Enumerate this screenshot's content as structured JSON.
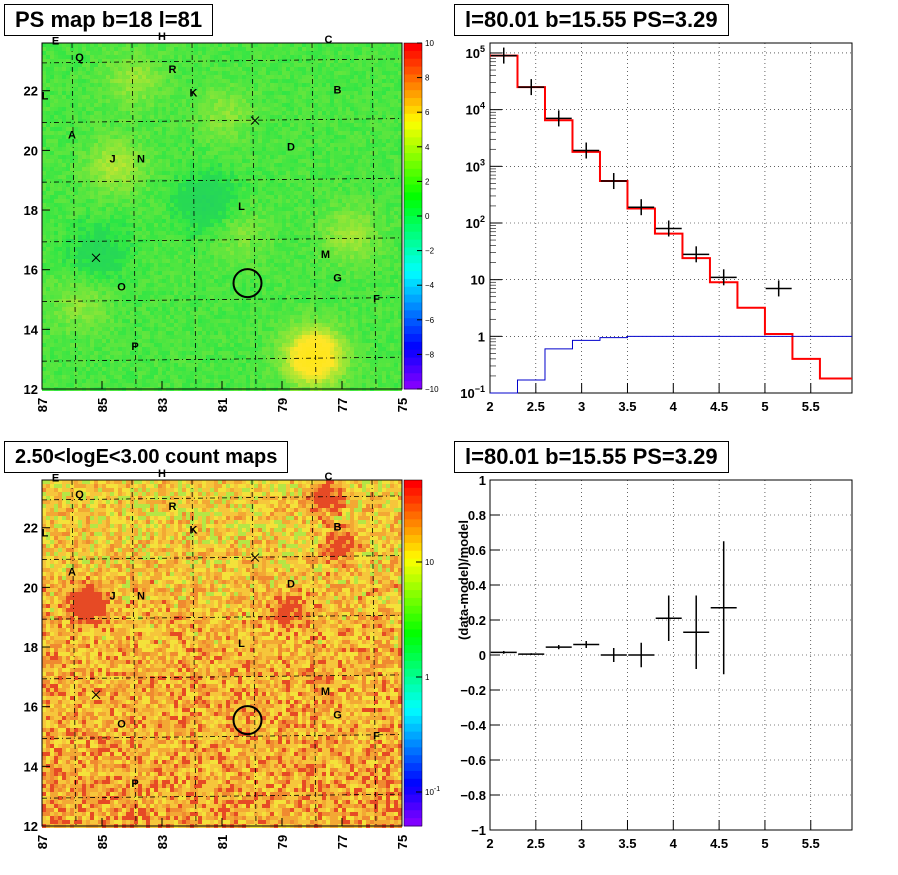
{
  "chart_data": [
    {
      "type": "heatmap",
      "title": "PS map b=18 l=81",
      "x_ticks": [
        "87",
        "85",
        "83",
        "81",
        "79",
        "77",
        "75"
      ],
      "y_ticks": [
        "12",
        "14",
        "16",
        "18",
        "20",
        "22"
      ],
      "xlim": [
        87,
        75
      ],
      "ylim": [
        12,
        23.6
      ],
      "colorbar_ticks": [
        "10",
        "8",
        "6",
        "4",
        "2",
        "0",
        "−2",
        "−4",
        "−6",
        "−8",
        "−10"
      ],
      "colorbar_range": [
        -10,
        10
      ],
      "labels": [
        {
          "t": "E",
          "l": 86.55,
          "b": 23.55
        },
        {
          "t": "Q",
          "l": 85.75,
          "b": 23.0
        },
        {
          "t": "H",
          "l": 83.0,
          "b": 23.7
        },
        {
          "t": "C",
          "l": 77.45,
          "b": 23.6
        },
        {
          "t": "R",
          "l": 82.65,
          "b": 22.6
        },
        {
          "t": "K",
          "l": 81.95,
          "b": 21.8
        },
        {
          "t": "B",
          "l": 77.15,
          "b": 21.9
        },
        {
          "t": "L",
          "l": 86.9,
          "b": 21.7
        },
        {
          "t": "A",
          "l": 86.0,
          "b": 20.4
        },
        {
          "t": "D",
          "l": 78.7,
          "b": 20.0
        },
        {
          "t": "J",
          "l": 84.65,
          "b": 19.6
        },
        {
          "t": "N",
          "l": 83.7,
          "b": 19.6
        },
        {
          "t": "L",
          "l": 80.35,
          "b": 18.0
        },
        {
          "t": "M",
          "l": 77.55,
          "b": 16.4
        },
        {
          "t": "G",
          "l": 77.15,
          "b": 15.6
        },
        {
          "t": "O",
          "l": 84.35,
          "b": 15.3
        },
        {
          "t": "F",
          "l": 75.85,
          "b": 14.9
        },
        {
          "t": "P",
          "l": 83.9,
          "b": 13.3
        }
      ],
      "circle": {
        "l": 80.15,
        "b": 15.55
      },
      "crosses": [
        {
          "l": 79.9,
          "b": 21.0
        },
        {
          "l": 85.2,
          "b": 16.4
        }
      ]
    },
    {
      "type": "line",
      "title": "l=80.01 b=15.55 PS=3.29",
      "x_ticks": [
        "2",
        "2.5",
        "3",
        "3.5",
        "4",
        "4.5",
        "5",
        "5.5"
      ],
      "xlim": [
        2,
        5.95
      ],
      "y_scale": "log",
      "ylim": [
        0.1,
        150000
      ],
      "y_ticks": [
        {
          "base": "10",
          "exp": "5",
          "v": 100000
        },
        {
          "base": "10",
          "exp": "4",
          "v": 10000
        },
        {
          "base": "10",
          "exp": "3",
          "v": 1000
        },
        {
          "base": "10",
          "exp": "2",
          "v": 100
        },
        {
          "base": "10",
          "exp": "",
          "v": 10
        },
        {
          "base": "1",
          "exp": "",
          "v": 1
        },
        {
          "base": "10",
          "exp": "−1",
          "v": 0.1
        }
      ],
      "bin_edges": [
        2.0,
        2.3,
        2.6,
        2.9,
        3.2,
        3.5,
        3.8,
        4.1,
        4.4,
        4.7,
        5.0,
        5.3,
        5.6,
        5.95
      ],
      "series": [
        {
          "values": [
            90000,
            25000,
            6500,
            1800,
            550,
            180,
            65,
            24,
            9,
            3.2,
            1.1,
            0.4,
            0.18
          ],
          "color": "#ff0000"
        },
        {
          "values": [
            0.09,
            0.17,
            0.6,
            0.85,
            0.95,
            1.0,
            1.0,
            1.0,
            1.0,
            1.0,
            1.0,
            1.0,
            1.0
          ],
          "color": "#0000cc"
        }
      ],
      "points": [
        {
          "x": 2.15,
          "y": 90000
        },
        {
          "x": 2.45,
          "y": 25000
        },
        {
          "x": 2.75,
          "y": 7000
        },
        {
          "x": 3.05,
          "y": 1900
        },
        {
          "x": 3.35,
          "y": 550
        },
        {
          "x": 3.65,
          "y": 190
        },
        {
          "x": 3.95,
          "y": 80
        },
        {
          "x": 4.25,
          "y": 28
        },
        {
          "x": 4.55,
          "y": 11
        },
        {
          "x": 5.15,
          "y": 7
        }
      ]
    },
    {
      "type": "heatmap",
      "title": "2.50<logE<3.00 count maps",
      "x_ticks": [
        "87",
        "85",
        "83",
        "81",
        "79",
        "77",
        "75"
      ],
      "y_ticks": [
        "12",
        "14",
        "16",
        "18",
        "20",
        "22"
      ],
      "xlim": [
        87,
        75
      ],
      "ylim": [
        12,
        23.6
      ],
      "colorbar_ticks": [
        {
          "base": "10",
          "exp": ""
        },
        {
          "base": "1",
          "exp": ""
        },
        {
          "base": "10",
          "exp": "-1"
        }
      ]
    },
    {
      "type": "scatter",
      "title": "l=80.01 b=15.55 PS=3.29",
      "ylabel": "(data-model)/model",
      "x_ticks": [
        "2",
        "2.5",
        "3",
        "3.5",
        "4",
        "4.5",
        "5",
        "5.5"
      ],
      "y_ticks": [
        "1",
        "0.8",
        "0.6",
        "0.4",
        "0.2",
        "0",
        "−0.2",
        "−0.4",
        "−0.6",
        "−0.8",
        "−1"
      ],
      "xlim": [
        2,
        5.95
      ],
      "ylim": [
        -1,
        1
      ],
      "points": [
        {
          "x": 2.15,
          "y": 0.015,
          "err": 0.008
        },
        {
          "x": 2.45,
          "y": 0.005,
          "err": 0.005
        },
        {
          "x": 2.75,
          "y": 0.045,
          "err": 0.012
        },
        {
          "x": 3.05,
          "y": 0.06,
          "err": 0.02
        },
        {
          "x": 3.35,
          "y": 0.0,
          "err": 0.04
        },
        {
          "x": 3.65,
          "y": 0.0,
          "err": 0.07
        },
        {
          "x": 3.95,
          "y": 0.21,
          "err": 0.13
        },
        {
          "x": 4.25,
          "y": 0.13,
          "err": 0.21
        },
        {
          "x": 4.55,
          "y": 0.27,
          "err": 0.38
        }
      ]
    }
  ]
}
